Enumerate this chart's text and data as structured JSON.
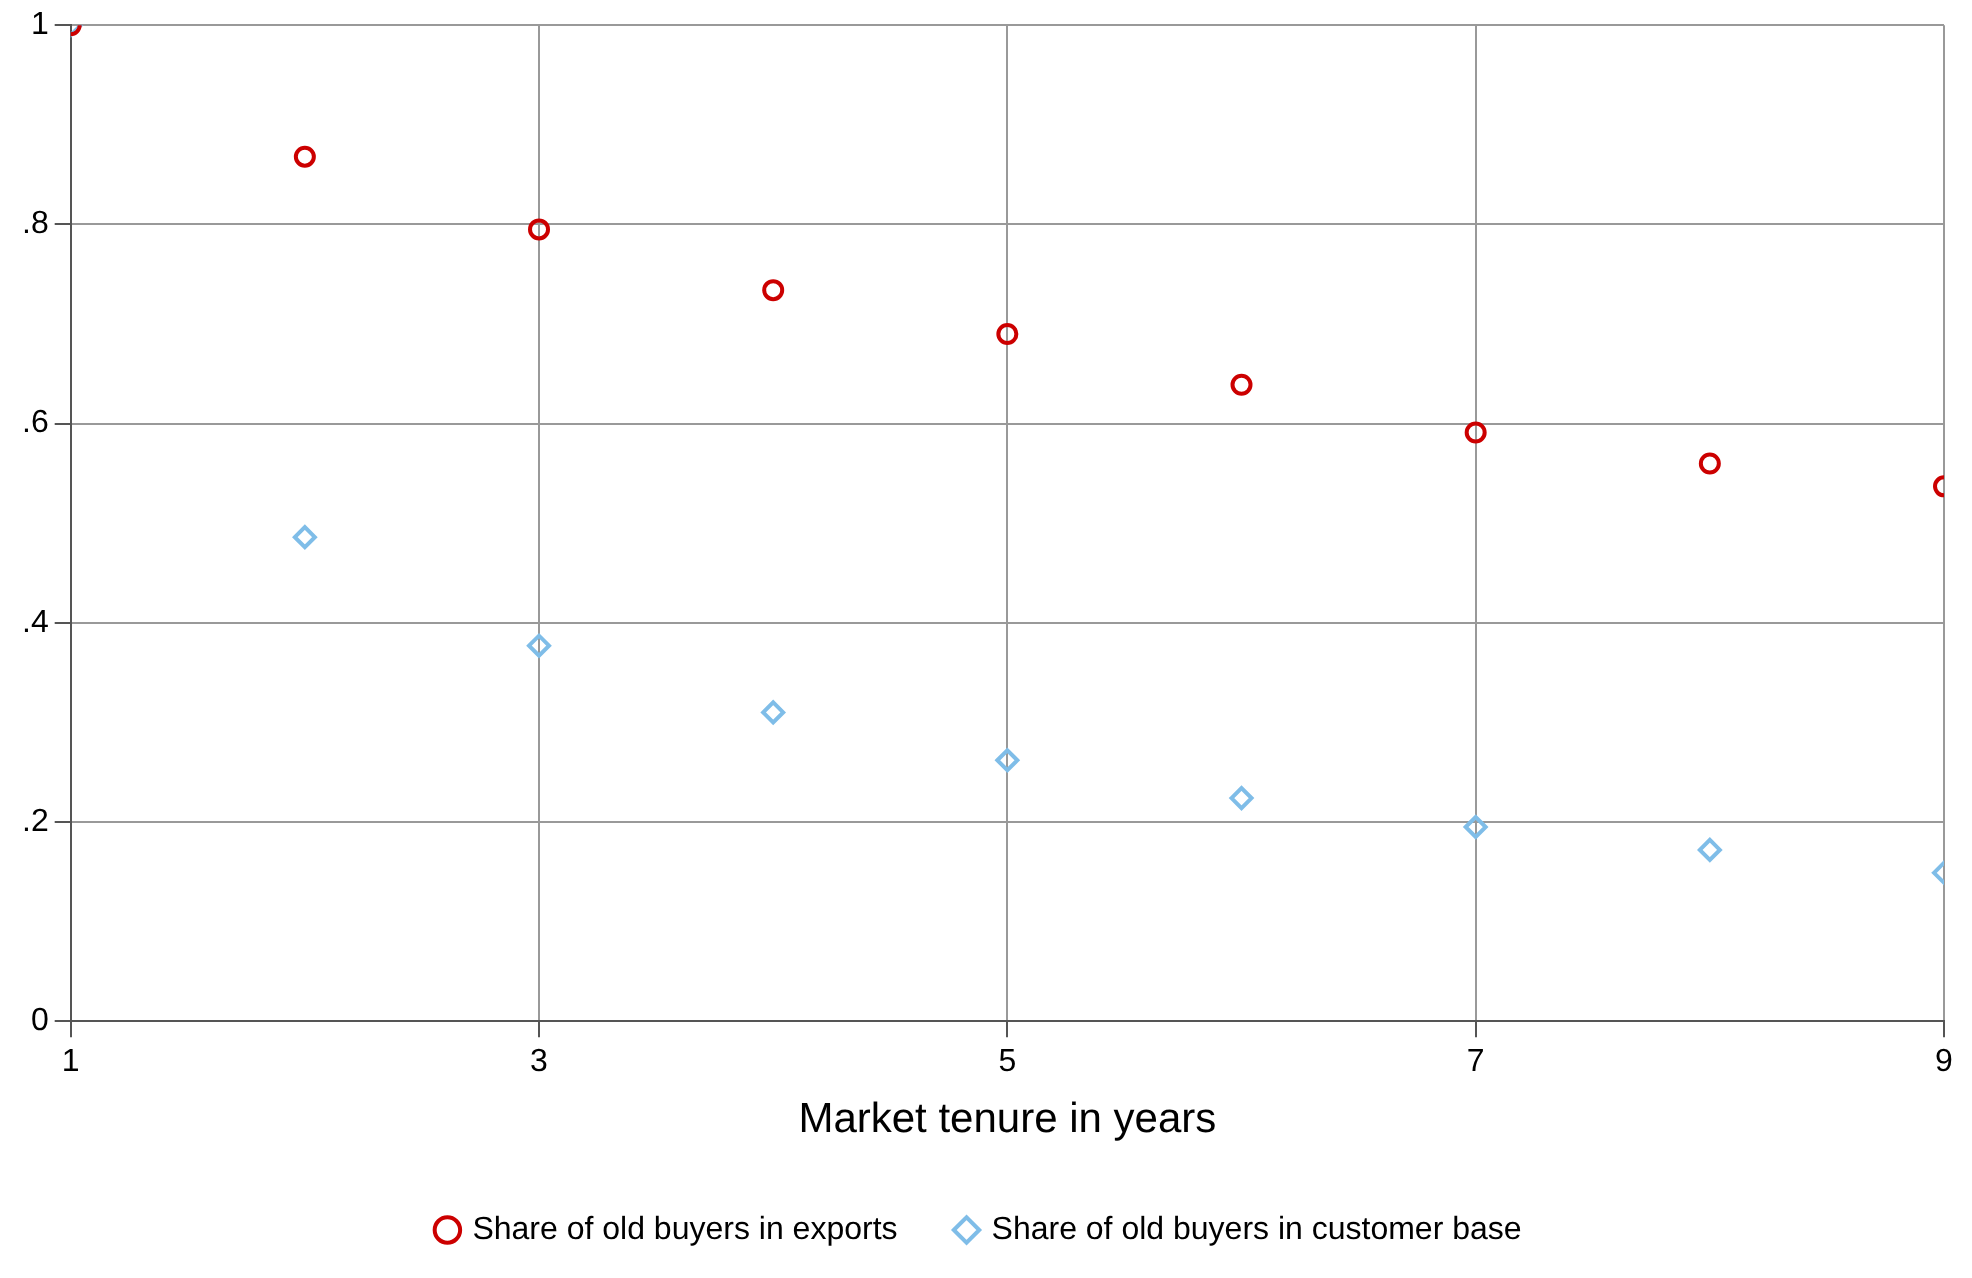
{
  "chart_data": {
    "type": "scatter",
    "xlabel": "Market tenure in years",
    "x": [
      1,
      2,
      3,
      4,
      5,
      6,
      7,
      8,
      9
    ],
    "series": [
      {
        "name": "Share of old buyers in exports",
        "color": "#cc0000",
        "marker": "circle",
        "values": [
          1.0,
          0.868,
          0.795,
          0.734,
          0.69,
          0.639,
          0.591,
          0.56,
          0.537
        ]
      },
      {
        "name": "Share of old buyers in customer base",
        "color": "#7fbde8",
        "marker": "diamond",
        "values": [
          1.0,
          0.486,
          0.377,
          0.31,
          0.262,
          0.224,
          0.195,
          0.172,
          0.149
        ]
      }
    ],
    "xlim": [
      1,
      9
    ],
    "xticks": [
      1,
      3,
      5,
      7,
      9
    ],
    "ylim": [
      0,
      1
    ],
    "yticks": [
      0,
      {
        "value": 0.2,
        "label": ".2"
      },
      {
        "value": 0.4,
        "label": ".4"
      },
      {
        "value": 0.6,
        "label": ".6"
      },
      {
        "value": 0.8,
        "label": ".8"
      },
      1
    ],
    "grid": true,
    "legend": "bottom"
  }
}
